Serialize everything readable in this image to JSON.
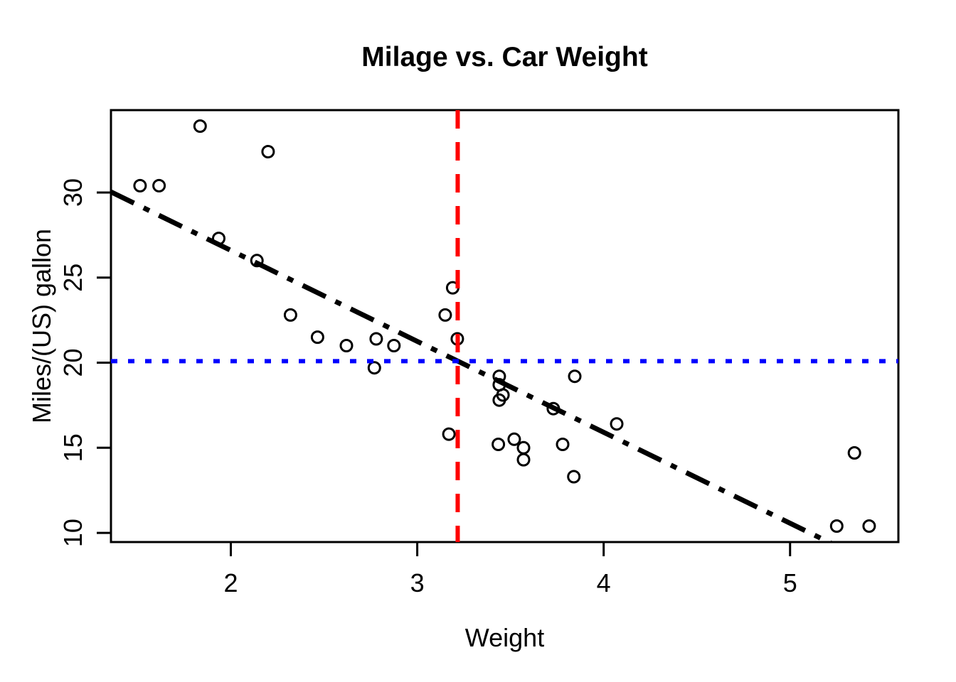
{
  "chart_data": {
    "type": "scatter",
    "title": "Milage vs. Car Weight",
    "xlabel": "Weight",
    "ylabel": "Miles/(US) gallon",
    "xlim": [
      1.357,
      5.581
    ],
    "ylim": [
      9.46,
      34.84
    ],
    "xticks": [
      2,
      3,
      4,
      5
    ],
    "yticks": [
      10,
      15,
      20,
      25,
      30
    ],
    "grid": false,
    "legend": null,
    "marker": "open-circle",
    "points_xy": [
      [
        2.62,
        21.0
      ],
      [
        2.875,
        21.0
      ],
      [
        2.32,
        22.8
      ],
      [
        3.215,
        21.4
      ],
      [
        3.44,
        18.7
      ],
      [
        3.46,
        18.1
      ],
      [
        3.57,
        14.3
      ],
      [
        3.19,
        24.4
      ],
      [
        3.15,
        22.8
      ],
      [
        3.44,
        19.2
      ],
      [
        3.44,
        17.8
      ],
      [
        4.07,
        16.4
      ],
      [
        3.73,
        17.3
      ],
      [
        3.78,
        15.2
      ],
      [
        5.25,
        10.4
      ],
      [
        5.424,
        10.4
      ],
      [
        5.345,
        14.7
      ],
      [
        2.2,
        32.4
      ],
      [
        1.615,
        30.4
      ],
      [
        1.835,
        33.9
      ],
      [
        2.465,
        21.5
      ],
      [
        3.52,
        15.5
      ],
      [
        3.435,
        15.2
      ],
      [
        3.84,
        13.3
      ],
      [
        3.845,
        19.2
      ],
      [
        1.935,
        27.3
      ],
      [
        2.14,
        26.0
      ],
      [
        1.513,
        30.4
      ],
      [
        3.17,
        15.8
      ],
      [
        2.77,
        19.7
      ],
      [
        3.57,
        15.0
      ],
      [
        2.78,
        21.4
      ]
    ],
    "lines": [
      {
        "name": "regression-line",
        "kind": "abline",
        "intercept": 37.285,
        "slope": -5.344,
        "color": "#000000",
        "linetype": "dotdash",
        "width": 7
      },
      {
        "name": "mean-weight-vline",
        "kind": "vline",
        "x": 3.217,
        "color": "#FF0000",
        "linetype": "dashed",
        "width": 6
      },
      {
        "name": "mean-mpg-hline",
        "kind": "hline",
        "y": 20.091,
        "color": "#0000FF",
        "linetype": "dotted",
        "width": 6
      }
    ],
    "colors": {
      "point_stroke": "#000000",
      "axis": "#000000",
      "background": "#FFFFFF"
    }
  }
}
